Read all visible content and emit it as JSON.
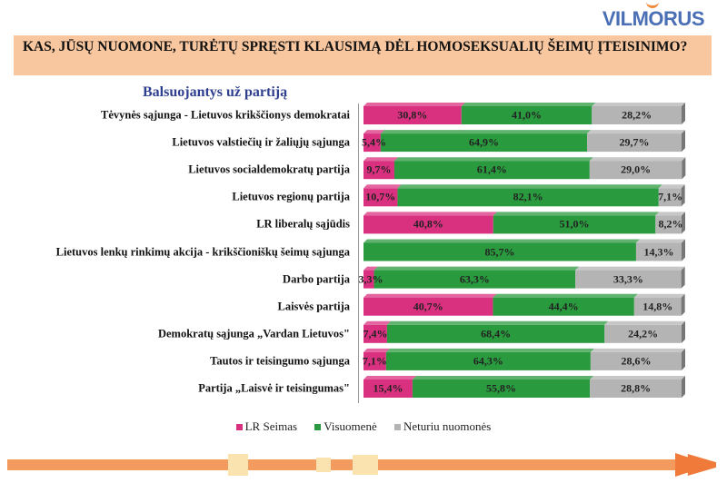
{
  "logo": "VILMORUS",
  "question": "KAS, JŪSŲ NUOMONE, TURĖTŲ SPRĘSTI KLAUSIMĄ DĖL HOMOSEKSUALIŲ ŠEIMŲ ĮTEISINIMO?",
  "chart_data": {
    "type": "bar",
    "orientation": "horizontal-stacked-100",
    "title": "Balsuojantys už partiją",
    "categories": [
      "Tėvynės sąjunga - Lietuvos krikščionys demokratai",
      "Lietuvos valstiečių ir žaliųjų sąjunga",
      "Lietuvos socialdemokratų partija",
      "Lietuvos regionų partija",
      "LR liberalų sąjūdis",
      "Lietuvos lenkų rinkimų akcija - krikščioniškų šeimų sąjunga",
      "Darbo partija",
      "Laisvės partija",
      "Demokratų sąjunga „Vardan Lietuvos\"",
      "Tautos ir teisingumo sąjunga",
      "Partija „Laisvė ir teisingumas\""
    ],
    "series": [
      {
        "name": "LR Seimas",
        "color": "#d9307f",
        "values": [
          30.8,
          5.4,
          9.7,
          10.7,
          40.8,
          0,
          3.3,
          40.7,
          7.4,
          7.1,
          15.4
        ],
        "labels": [
          "30,8%",
          "5,4%",
          "9,7%",
          "10,7%",
          "40,8%",
          "",
          "3,3%",
          "40,7%",
          "7,4%",
          "7,1%",
          "15,4%"
        ]
      },
      {
        "name": "Visuomenė",
        "color": "#2a9a3e",
        "values": [
          41.0,
          64.9,
          61.4,
          82.1,
          51.0,
          85.7,
          63.3,
          44.4,
          68.4,
          64.3,
          55.8
        ],
        "labels": [
          "41,0%",
          "64,9%",
          "61,4%",
          "82,1%",
          "51,0%",
          "85,7%",
          "63,3%",
          "44,4%",
          "68,4%",
          "64,3%",
          "55,8%"
        ]
      },
      {
        "name": "Neturiu nuomonės",
        "color": "#b4b4b4",
        "values": [
          28.2,
          29.7,
          29.0,
          7.1,
          8.2,
          14.3,
          33.3,
          14.8,
          24.2,
          28.6,
          28.8
        ],
        "labels": [
          "28,2%",
          "29,7%",
          "29,0%",
          "7,1%",
          "8,2%",
          "14,3%",
          "33,3%",
          "14,8%",
          "24,2%",
          "28,6%",
          "28,8%"
        ]
      }
    ],
    "xlim": [
      0,
      100
    ],
    "legend": "bottom-center"
  }
}
